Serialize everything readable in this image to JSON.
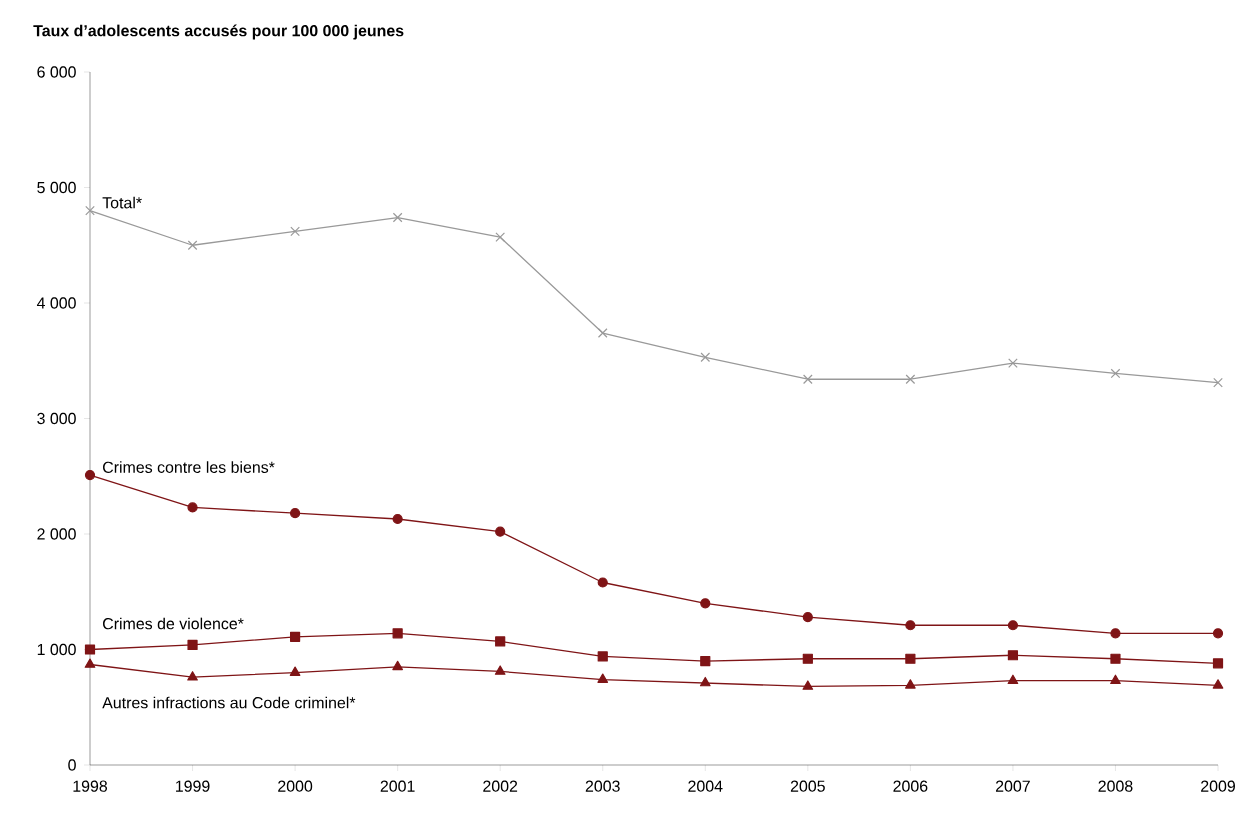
{
  "chart_data": {
    "type": "line",
    "ylabel": "Taux d’adolescents accusés pour 100 000 jeunes",
    "x": [
      1998,
      1999,
      2000,
      2001,
      2002,
      2003,
      2004,
      2005,
      2006,
      2007,
      2008,
      2009
    ],
    "xlim": [
      1998,
      2009
    ],
    "xticks": [
      1998,
      1999,
      2000,
      2001,
      2002,
      2003,
      2004,
      2005,
      2006,
      2007,
      2008,
      2009
    ],
    "ylim": [
      0,
      6000
    ],
    "yticks": [
      0,
      {
        "value": 1000,
        "label": "1 000"
      },
      {
        "value": 2000,
        "label": "2 000"
      },
      {
        "value": 3000,
        "label": "3 000"
      },
      {
        "value": 4000,
        "label": "4 000"
      },
      {
        "value": 5000,
        "label": "5 000"
      },
      {
        "value": 6000,
        "label": "6 000"
      }
    ],
    "grid": false,
    "line_style": "solid",
    "series": [
      {
        "name": "Total*",
        "color": "#999999",
        "marker": "cross",
        "values": [
          4800,
          4500,
          4620,
          4740,
          4570,
          3740,
          3530,
          3340,
          3340,
          3480,
          3390,
          3310
        ]
      },
      {
        "name": "Crimes contre les biens*",
        "color": "#7f1416",
        "marker": "circle",
        "values": [
          2510,
          2230,
          2180,
          2130,
          2020,
          1580,
          1400,
          1280,
          1210,
          1210,
          1140,
          1140
        ]
      },
      {
        "name": "Crimes de violence*",
        "color": "#7f1416",
        "marker": "square",
        "values": [
          1000,
          1040,
          1110,
          1140,
          1070,
          940,
          900,
          920,
          920,
          950,
          920,
          880
        ]
      },
      {
        "name": "Autres infractions au Code criminel*",
        "color": "#7f1416",
        "marker": "triangle",
        "values": [
          870,
          760,
          800,
          850,
          810,
          740,
          710,
          680,
          690,
          730,
          730,
          690
        ]
      }
    ]
  }
}
